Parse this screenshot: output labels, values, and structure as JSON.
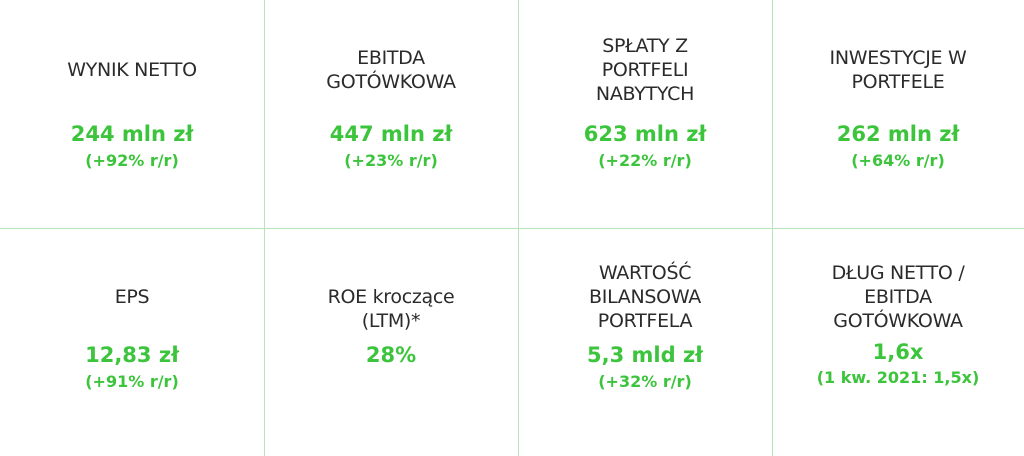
{
  "metrics": [
    {
      "label_lines": [
        "WYNIK NETTO"
      ],
      "value": "244 mln zł",
      "change": "(+92% r/r)"
    },
    {
      "label_lines": [
        "EBITDA",
        "GOTÓWKOWA"
      ],
      "value": "447 mln zł",
      "change": "(+23% r/r)"
    },
    {
      "label_lines": [
        "SPŁATY Z",
        "PORTFELI",
        "NABYTYCH"
      ],
      "value": "623 mln zł",
      "change": "(+22% r/r)"
    },
    {
      "label_lines": [
        "INWESTYCJE W",
        "PORTFELE"
      ],
      "value": "262 mln zł",
      "change": "(+64% r/r)"
    },
    {
      "label_lines": [
        "EPS"
      ],
      "value": "12,83 zł",
      "change": "(+91% r/r)"
    },
    {
      "label_lines": [
        "ROE kroczące",
        "(LTM)*"
      ],
      "value": "28%",
      "change": ""
    },
    {
      "label_lines": [
        "WARTOŚĆ",
        "BILANSOWA",
        "PORTFELA"
      ],
      "value": "5,3 mld zł",
      "change": "(+32% r/r)"
    },
    {
      "label_lines": [
        "DŁUG NETTO /",
        "EBITDA",
        "GOTÓWKOWA"
      ],
      "value": "1,6x",
      "change": "(1 kw. 2021: 1,5x)"
    }
  ],
  "colors": {
    "value_green": "#3cc43c",
    "label_dark": "#2b2b2b",
    "divider_green": "#b9e3b9"
  }
}
